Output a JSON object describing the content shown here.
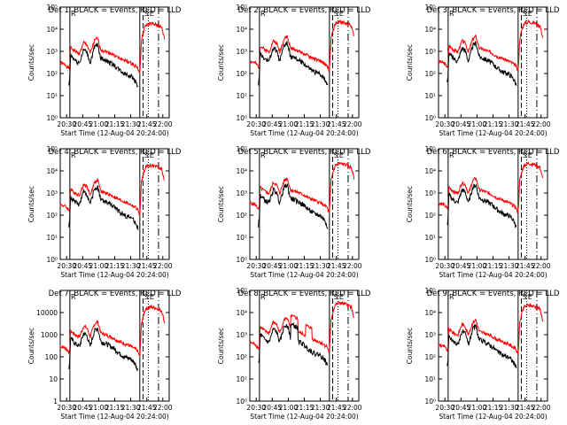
{
  "colors": {
    "events": "#000000",
    "lld": "#ff0000",
    "background": "#ffffff"
  },
  "common": {
    "ylabel": "Counts/sec",
    "xlabel": "Start Time (12-Aug-04 20:24:00)",
    "x_tick_labels": [
      "20:30",
      "20:45",
      "21:00",
      "21:15",
      "21:30",
      "21:45",
      "22:00"
    ],
    "x_tick_minutes": [
      6,
      21,
      36,
      51,
      66,
      81,
      96
    ],
    "xlim_minutes": [
      0,
      102
    ],
    "ylim_log": [
      1,
      100000
    ],
    "marker_letters": [
      "R",
      "S",
      "E"
    ],
    "vlines": [
      {
        "x": 9,
        "style": "solid"
      },
      {
        "x": 74.5,
        "style": "solid"
      },
      {
        "x": 77.5,
        "style": "dashed"
      },
      {
        "x": 82.5,
        "style": "dotted"
      },
      {
        "x": 92,
        "style": "dashdot"
      }
    ]
  },
  "panels": [
    {
      "title": "Det 1: BLACK = Events, RED = LLD",
      "yticks": [
        "10⁰",
        "10¹",
        "10²",
        "10³",
        "10⁴",
        "10⁵"
      ],
      "seed": 1,
      "shape": "a"
    },
    {
      "title": "Det 2: BLACK = Events, RED = LLD",
      "yticks": [
        "10⁰",
        "10¹",
        "10²",
        "10³",
        "10⁴",
        "10⁵"
      ],
      "seed": 2,
      "shape": "b"
    },
    {
      "title": "Det 3: BLACK = Events, RED = LLD",
      "yticks": [
        "10⁰",
        "10¹",
        "10²",
        "10³",
        "10⁴",
        "10⁵"
      ],
      "seed": 3,
      "shape": "b"
    },
    {
      "title": "Det 4: BLACK = Events, RED = LLD",
      "yticks": [
        "10⁰",
        "10¹",
        "10²",
        "10³",
        "10⁴",
        "10⁵"
      ],
      "seed": 4,
      "shape": "a"
    },
    {
      "title": "Det 5: BLACK = Events, RED = LLD",
      "yticks": [
        "10⁰",
        "10¹",
        "10²",
        "10³",
        "10⁴",
        "10⁵"
      ],
      "seed": 5,
      "shape": "b"
    },
    {
      "title": "Det 6: BLACK = Events, RED = LLD",
      "yticks": [
        "10⁰",
        "10¹",
        "10²",
        "10³",
        "10⁴",
        "10⁵"
      ],
      "seed": 6,
      "shape": "b"
    },
    {
      "title": "Det 7: BLACK = Events, RED = LLD",
      "yticks": [
        "1",
        "10",
        "100",
        "1000",
        "10000"
      ],
      "seed": 7,
      "shape": "a"
    },
    {
      "title": "Det 8: BLACK = Events, RED = LLD",
      "yticks": [
        "10⁰",
        "10¹",
        "10²",
        "10³",
        "10⁴",
        "10⁵"
      ],
      "seed": 8,
      "shape": "c"
    },
    {
      "title": "Det 9: BLACK = Events, RED = LLD",
      "yticks": [
        "10⁰",
        "10¹",
        "10²",
        "10³",
        "10⁴",
        "10⁵"
      ],
      "seed": 9,
      "shape": "b"
    }
  ],
  "chart_data": {
    "type": "line",
    "series": [
      {
        "name": "Events",
        "color": "#000000"
      },
      {
        "name": "LLD",
        "color": "#ff0000"
      }
    ],
    "x_unit": "minutes after 12-Aug-04 20:24:00",
    "yscale": "log",
    "keypoints": {
      "lld": [
        [
          0,
          300
        ],
        [
          5,
          250
        ],
        [
          9,
          150
        ],
        [
          9.5,
          1500
        ],
        [
          14,
          1000
        ],
        [
          18,
          800
        ],
        [
          22,
          2500
        ],
        [
          25,
          2000
        ],
        [
          28,
          800
        ],
        [
          32,
          3000
        ],
        [
          35,
          4000
        ],
        [
          38,
          1200
        ],
        [
          45,
          900
        ],
        [
          50,
          700
        ],
        [
          55,
          500
        ],
        [
          60,
          400
        ],
        [
          66,
          300
        ],
        [
          72,
          200
        ],
        [
          74.5,
          100
        ],
        [
          76,
          3000
        ],
        [
          78,
          8000
        ],
        [
          80,
          15000
        ],
        [
          84,
          18000
        ],
        [
          90,
          16000
        ],
        [
          95,
          12000
        ],
        [
          98,
          3000
        ]
      ],
      "events": [
        [
          8,
          30
        ],
        [
          9,
          60
        ],
        [
          9.5,
          700
        ],
        [
          14,
          400
        ],
        [
          18,
          300
        ],
        [
          22,
          1200
        ],
        [
          25,
          900
        ],
        [
          28,
          300
        ],
        [
          32,
          1500
        ],
        [
          35,
          2000
        ],
        [
          38,
          500
        ],
        [
          45,
          350
        ],
        [
          50,
          250
        ],
        [
          55,
          150
        ],
        [
          60,
          100
        ],
        [
          66,
          80
        ],
        [
          70,
          50
        ],
        [
          73,
          25
        ]
      ]
    }
  }
}
